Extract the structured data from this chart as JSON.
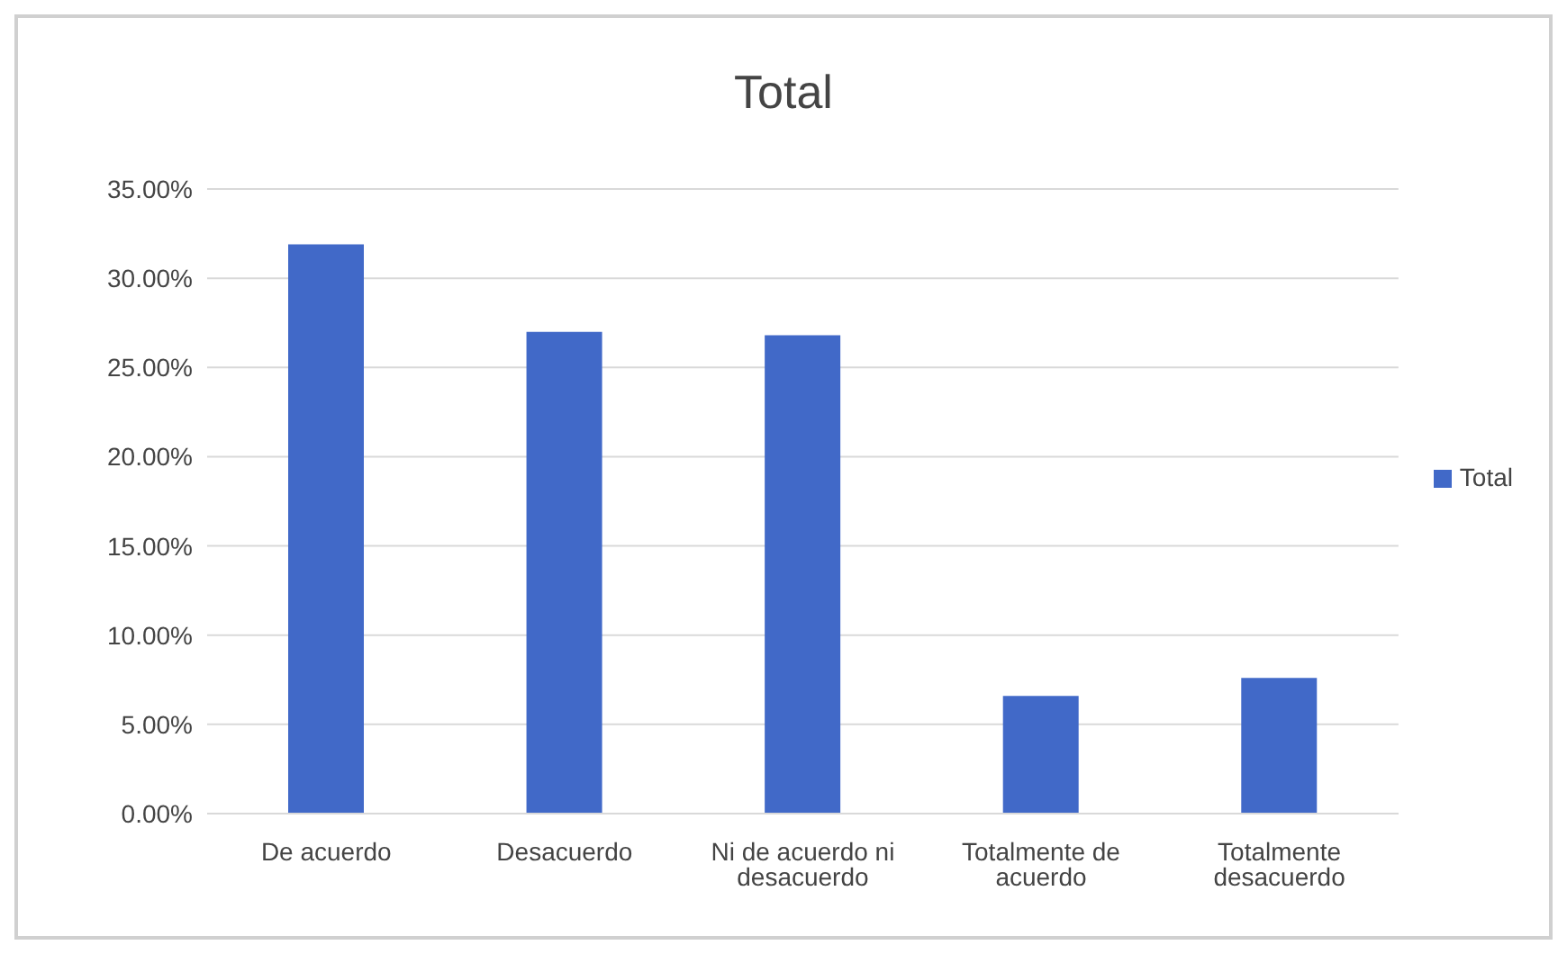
{
  "chart_data": {
    "type": "bar",
    "title": "Total",
    "categories": [
      "De acuerdo",
      "Desacuerdo",
      "Ni de acuerdo ni desacuerdo",
      "Totalmente de acuerdo",
      "Totalmente desacuerdo"
    ],
    "series": [
      {
        "name": "Total",
        "color": "#4169c8",
        "values": [
          31.9,
          27.0,
          26.8,
          6.6,
          7.6
        ]
      }
    ],
    "ylim": [
      0,
      35
    ],
    "yticks": [
      {
        "value": 0,
        "label": "0.00%"
      },
      {
        "value": 5,
        "label": "5.00%"
      },
      {
        "value": 10,
        "label": "10.00%"
      },
      {
        "value": 15,
        "label": "15.00%"
      },
      {
        "value": 20,
        "label": "20.00%"
      },
      {
        "value": 25,
        "label": "25.00%"
      },
      {
        "value": 30,
        "label": "30.00%"
      },
      {
        "value": 35,
        "label": "35.00%"
      }
    ],
    "grid": "y",
    "legend": "right"
  }
}
